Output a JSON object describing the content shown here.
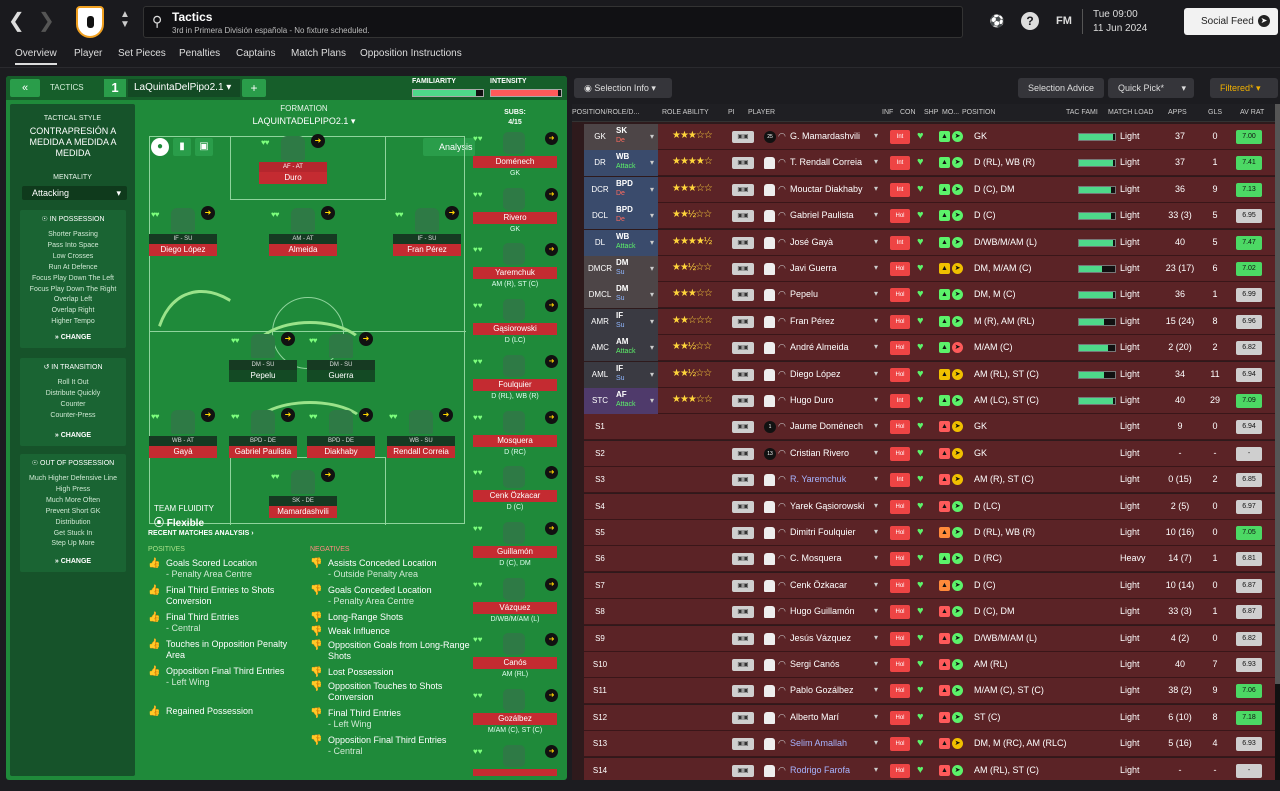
{
  "top": {
    "title": "Tactics",
    "subtitle": "3rd in Primera División española - No fixture scheduled.",
    "date_line1": "Tue 09:00",
    "date_line2": "11 Jun 2024",
    "fm_label": "FM",
    "social_label": "Social Feed",
    "help_label": "?"
  },
  "tabs": [
    "Overview",
    "Player",
    "Set Pieces",
    "Penalties",
    "Captains",
    "Match Plans",
    "Opposition Instructions"
  ],
  "tactic": {
    "tactics_label": "TACTICS",
    "number": "1",
    "name": "LaQuintaDelPipo2.1",
    "familiarity_label": "FAMILIARITY",
    "familiarity": 0.9,
    "intensity_label": "INTENSITY",
    "intensity": 0.95,
    "style_label": "TACTICAL STYLE",
    "style": "CONTRAPRESIÓN A MEDIDA A MEDIDA A MEDIDA",
    "mentality_label": "MENTALITY",
    "mentality": "Attacking",
    "in_possession_label": "IN POSSESSION",
    "in_possession": [
      "Shorter Passing",
      "Pass Into Space",
      "Low Crosses",
      "Run At Defence",
      "Focus Play Down The Left",
      "Focus Play Down The Right",
      "Overlap Left",
      "Overlap Right",
      "Higher Tempo"
    ],
    "in_transition_label": "IN TRANSITION",
    "in_transition": [
      "Roll It Out",
      "Distribute Quickly",
      "Counter",
      "Counter-Press"
    ],
    "out_of_possession_label": "OUT OF POSSESSION",
    "out_of_possession": [
      "Much Higher Defensive Line",
      "High Press",
      "Much More Often",
      "Prevent Short GK",
      "Distribution",
      "Get Stuck In",
      "Step Up More"
    ],
    "change_label": "CHANGE",
    "formation_label": "FORMATION",
    "formation_name": "LAQUINTADELPIPO2.1",
    "analysis_label": "Analysis",
    "team_fluidity_label": "TEAM FLUIDITY",
    "team_fluidity": "Flexible",
    "subs_label": "SUBS:",
    "subs_count": "4/15"
  },
  "pitch_players": [
    {
      "role": "AF - AT",
      "name": "Duro",
      "red": true
    },
    {
      "role": "IF - SU",
      "name": "Diego López",
      "red": false
    },
    {
      "role": "AM - AT",
      "name": "Almeida",
      "red": false
    },
    {
      "role": "IF - SU",
      "name": "Fran Pérez",
      "red": false
    },
    {
      "role": "DM - SU",
      "name": "Pepelu",
      "red": false
    },
    {
      "role": "DM - SU",
      "name": "Guerra",
      "red": false
    },
    {
      "role": "WB - AT",
      "name": "Gayà",
      "red": false
    },
    {
      "role": "BPD - DE",
      "name": "Gabriel Paulista",
      "red": false
    },
    {
      "role": "BPD - DE",
      "name": "Diakhaby",
      "red": false
    },
    {
      "role": "WB - SU",
      "name": "Rendall Correia",
      "red": false
    },
    {
      "role": "SK - DE",
      "name": "Mamardashvili",
      "red": false
    }
  ],
  "recent_matches": {
    "title": "RECENT MATCHES ANALYSIS",
    "positives_label": "POSITIVES",
    "negatives_label": "NEGATIVES",
    "positives": [
      {
        "text": "Goals Scored Location",
        "loc": "- Penalty Area Centre"
      },
      {
        "text": "Final Third Entries to Shots Conversion",
        "loc": ""
      },
      {
        "text": "Final Third Entries",
        "loc": "- Central"
      },
      {
        "text": "Touches in Opposition Penalty Area",
        "loc": ""
      },
      {
        "text": "Opposition Final Third Entries",
        "loc": "- Left Wing"
      },
      {
        "text": "Regained Possession",
        "loc": ""
      }
    ],
    "negatives": [
      {
        "text": "Assists Conceded Location",
        "loc": "- Outside Penalty Area"
      },
      {
        "text": "Goals Conceded Location",
        "loc": "- Penalty Area Centre"
      },
      {
        "text": "Long-Range Shots",
        "loc": ""
      },
      {
        "text": "Weak Influence",
        "loc": ""
      },
      {
        "text": "Opposition Goals from Long-Range Shots",
        "loc": ""
      },
      {
        "text": "Lost Possession",
        "loc": ""
      },
      {
        "text": "Opposition Touches to Shots Conversion",
        "loc": ""
      },
      {
        "text": "Final Third Entries",
        "loc": "- Left Wing"
      },
      {
        "text": "Opposition Final Third Entries",
        "loc": "- Central"
      }
    ]
  },
  "subs": [
    {
      "name": "Doménech",
      "pos": "GK"
    },
    {
      "name": "Rivero",
      "pos": "GK"
    },
    {
      "name": "Yaremchuk",
      "pos": "AM (R), ST (C)"
    },
    {
      "name": "Gąsiorowski",
      "pos": "D (LC)"
    },
    {
      "name": "Foulquier",
      "pos": "D (RL), WB (R)"
    },
    {
      "name": "Mosquera",
      "pos": "D (RC)"
    },
    {
      "name": "Cenk Özkacar",
      "pos": "D (C)"
    },
    {
      "name": "Guillamón",
      "pos": "D (C), DM"
    },
    {
      "name": "Vázquez",
      "pos": "D/WB/M/AM (L)"
    },
    {
      "name": "Canós",
      "pos": "AM (RL)"
    },
    {
      "name": "Gozálbez",
      "pos": "M/AM (C), ST (C)"
    },
    {
      "name": "",
      "pos": ""
    }
  ],
  "toolbar": {
    "selection_info": "Selection Info",
    "selection_advice": "Selection Advice",
    "quick_pick": "Quick Pick*",
    "filtered": "Filtered*"
  },
  "table": {
    "headers": [
      "POSITION/ROLE/D...",
      "ROLE ABILITY",
      "PI",
      "PLAYER",
      "INF",
      "CON",
      "SHP",
      "MO...",
      "POSITION",
      "TAC FAMI",
      "MATCH LOAD",
      "APPS",
      "GLS",
      "AV RAT"
    ],
    "rows": [
      {
        "pos": "GK",
        "r1": "SK",
        "r2": "De",
        "stars": "★★★☆☆",
        "player": "G. Mamardashvili",
        "inf": "Int",
        "position": "GK",
        "tac": 0.95,
        "load": "Light",
        "apps": "37",
        "gls": "0",
        "rat": "7.00",
        "link": false
      },
      {
        "pos": "DR",
        "r1": "WB",
        "r2": "Attack",
        "stars": "★★★★☆",
        "player": "T. Rendall Correia",
        "inf": "Int",
        "position": "D (RL), WB (R)",
        "tac": 0.95,
        "load": "Light",
        "apps": "37",
        "gls": "1",
        "rat": "7.41",
        "link": false
      },
      {
        "pos": "DCR",
        "r1": "BPD",
        "r2": "De",
        "stars": "★★★☆☆",
        "player": "Mouctar Diakhaby",
        "inf": "Int",
        "position": "D (C), DM",
        "tac": 0.9,
        "load": "Light",
        "apps": "36",
        "gls": "9",
        "rat": "7.13",
        "link": false
      },
      {
        "pos": "DCL",
        "r1": "BPD",
        "r2": "De",
        "stars": "★★½☆☆",
        "player": "Gabriel Paulista",
        "inf": "Hol",
        "position": "D (C)",
        "tac": 0.9,
        "load": "Light",
        "apps": "33 (3)",
        "gls": "5",
        "rat": "6.95",
        "link": false
      },
      {
        "pos": "DL",
        "r1": "WB",
        "r2": "Attack",
        "stars": "★★★★½",
        "player": "José Gayà",
        "inf": "Int",
        "position": "D/WB/M/AM (L)",
        "tac": 0.95,
        "load": "Light",
        "apps": "40",
        "gls": "5",
        "rat": "7.47",
        "link": false
      },
      {
        "pos": "DMCR",
        "r1": "DM",
        "r2": "Su",
        "stars": "★★½☆☆",
        "player": "Javi Guerra",
        "inf": "Hol",
        "position": "DM, M/AM (C)",
        "tac": 0.65,
        "load": "Light",
        "apps": "23 (17)",
        "gls": "6",
        "rat": "7.02",
        "link": false
      },
      {
        "pos": "DMCL",
        "r1": "DM",
        "r2": "Su",
        "stars": "★★★☆☆",
        "player": "Pepelu",
        "inf": "Hol",
        "position": "DM, M (C)",
        "tac": 0.95,
        "load": "Light",
        "apps": "36",
        "gls": "1",
        "rat": "6.99",
        "link": false
      },
      {
        "pos": "AMR",
        "r1": "IF",
        "r2": "Su",
        "stars": "★★☆☆☆",
        "player": "Fran Pérez",
        "inf": "Hol",
        "position": "M (R), AM (RL)",
        "tac": 0.7,
        "load": "Light",
        "apps": "15 (24)",
        "gls": "8",
        "rat": "6.96",
        "link": false
      },
      {
        "pos": "AMC",
        "r1": "AM",
        "r2": "Attack",
        "stars": "★★½☆☆",
        "player": "André Almeida",
        "inf": "Hol",
        "position": "M/AM (C)",
        "tac": 0.8,
        "load": "Light",
        "apps": "2 (20)",
        "gls": "2",
        "rat": "6.82",
        "link": false
      },
      {
        "pos": "AML",
        "r1": "IF",
        "r2": "Su",
        "stars": "★★½☆☆",
        "player": "Diego López",
        "inf": "Hol",
        "position": "AM (RL), ST (C)",
        "tac": 0.7,
        "load": "Light",
        "apps": "34",
        "gls": "11",
        "rat": "6.94",
        "link": false
      },
      {
        "pos": "STC",
        "r1": "AF",
        "r2": "Attack",
        "stars": "★★★☆☆",
        "player": "Hugo Duro",
        "inf": "Int",
        "position": "AM (LC), ST (C)",
        "tac": 0.95,
        "load": "Light",
        "apps": "40",
        "gls": "29",
        "rat": "7.09",
        "link": false
      },
      {
        "pos": "S1",
        "r1": "",
        "r2": "",
        "stars": "",
        "player": "Jaume Doménech",
        "inf": "Hol",
        "position": "GK",
        "tac": 0,
        "load": "Light",
        "apps": "9",
        "gls": "0",
        "rat": "6.94",
        "link": false
      },
      {
        "pos": "S2",
        "r1": "",
        "r2": "",
        "stars": "",
        "player": "Cristian Rivero",
        "inf": "Hol",
        "position": "GK",
        "tac": 0,
        "load": "Light",
        "apps": "-",
        "gls": "-",
        "rat": "-",
        "link": false
      },
      {
        "pos": "S3",
        "r1": "",
        "r2": "",
        "stars": "",
        "player": "R. Yaremchuk",
        "inf": "Int",
        "position": "AM (R), ST (C)",
        "tac": 0,
        "load": "Light",
        "apps": "0 (15)",
        "gls": "2",
        "rat": "6.85",
        "link": true
      },
      {
        "pos": "S4",
        "r1": "",
        "r2": "",
        "stars": "",
        "player": "Yarek Gąsiorowski",
        "inf": "Hol",
        "position": "D (LC)",
        "tac": 0,
        "load": "Light",
        "apps": "2 (5)",
        "gls": "0",
        "rat": "6.97",
        "link": false
      },
      {
        "pos": "S5",
        "r1": "",
        "r2": "",
        "stars": "",
        "player": "Dimitri Foulquier",
        "inf": "Hol",
        "position": "D (RL), WB (R)",
        "tac": 0,
        "load": "Light",
        "apps": "10 (16)",
        "gls": "0",
        "rat": "7.05",
        "link": false
      },
      {
        "pos": "S6",
        "r1": "",
        "r2": "",
        "stars": "",
        "player": "C. Mosquera",
        "inf": "Hol",
        "position": "D (RC)",
        "tac": 0,
        "load": "Heavy",
        "apps": "14 (7)",
        "gls": "1",
        "rat": "6.81",
        "link": false
      },
      {
        "pos": "S7",
        "r1": "",
        "r2": "",
        "stars": "",
        "player": "Cenk Özkacar",
        "inf": "Hol",
        "position": "D (C)",
        "tac": 0,
        "load": "Light",
        "apps": "10 (14)",
        "gls": "0",
        "rat": "6.87",
        "link": false
      },
      {
        "pos": "S8",
        "r1": "",
        "r2": "",
        "stars": "",
        "player": "Hugo Guillamón",
        "inf": "Hol",
        "position": "D (C), DM",
        "tac": 0,
        "load": "Light",
        "apps": "33 (3)",
        "gls": "1",
        "rat": "6.87",
        "link": false
      },
      {
        "pos": "S9",
        "r1": "",
        "r2": "",
        "stars": "",
        "player": "Jesús Vázquez",
        "inf": "Hol",
        "position": "D/WB/M/AM (L)",
        "tac": 0,
        "load": "Light",
        "apps": "4 (2)",
        "gls": "0",
        "rat": "6.82",
        "link": false
      },
      {
        "pos": "S10",
        "r1": "",
        "r2": "",
        "stars": "",
        "player": "Sergi Canós",
        "inf": "Hol",
        "position": "AM (RL)",
        "tac": 0,
        "load": "Light",
        "apps": "40",
        "gls": "7",
        "rat": "6.93",
        "link": false
      },
      {
        "pos": "S11",
        "r1": "",
        "r2": "",
        "stars": "",
        "player": "Pablo Gozálbez",
        "inf": "Hol",
        "position": "M/AM (C), ST (C)",
        "tac": 0,
        "load": "Light",
        "apps": "38 (2)",
        "gls": "9",
        "rat": "7.06",
        "link": false
      },
      {
        "pos": "S12",
        "r1": "",
        "r2": "",
        "stars": "",
        "player": "Alberto Marí",
        "inf": "Hol",
        "position": "ST (C)",
        "tac": 0,
        "load": "Light",
        "apps": "6 (10)",
        "gls": "8",
        "rat": "7.18",
        "link": false
      },
      {
        "pos": "S13",
        "r1": "",
        "r2": "",
        "stars": "",
        "player": "Selim Amallah",
        "inf": "Hol",
        "position": "DM, M (RC), AM (RLC)",
        "tac": 0,
        "load": "Light",
        "apps": "5 (16)",
        "gls": "4",
        "rat": "6.93",
        "link": true
      },
      {
        "pos": "S14",
        "r1": "",
        "r2": "",
        "stars": "",
        "player": "Rodrigo Farofa",
        "inf": "Hol",
        "position": "AM (RL), ST (C)",
        "tac": 0,
        "load": "Light",
        "apps": "-",
        "gls": "-",
        "rat": "-",
        "link": true
      }
    ]
  },
  "colors": {
    "rating_high": "#4cd964",
    "rating_mid": "#9ad27a",
    "rating_neutral": "#cfcfcf",
    "role_blue": "#3a4b6c",
    "role_purple": "#4f3a6b",
    "role_grey": "#4d4547"
  }
}
